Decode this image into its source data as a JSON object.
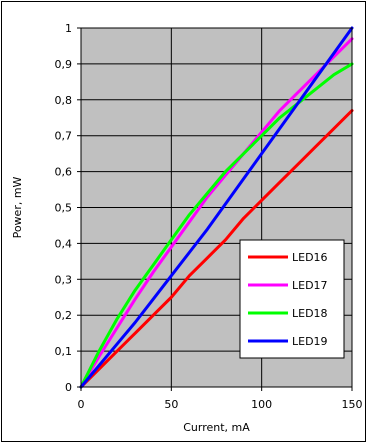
{
  "chart_data": {
    "type": "line",
    "xlabel": "Current, mA",
    "ylabel": "Power, mW",
    "xlim": [
      0,
      150
    ],
    "ylim": [
      0,
      1
    ],
    "x_ticks": [
      0,
      50,
      100,
      150
    ],
    "y_ticks": [
      0,
      0.1,
      0.2,
      0.3,
      0.4,
      0.5,
      0.6,
      0.7,
      0.8,
      0.9,
      1
    ],
    "x_tick_labels": [
      "0",
      "50",
      "100",
      "150"
    ],
    "y_tick_labels": [
      "0",
      "0,1",
      "0,2",
      "0,3",
      "0,4",
      "0,5",
      "0,6",
      "0,7",
      "0,8",
      "0,9",
      "1"
    ],
    "grid": "vertical and horizontal at major ticks",
    "plot_background": "#c0c0c0",
    "legend_position": "lower-right",
    "series": [
      {
        "name": "LED16",
        "color": "#ff0000",
        "x": [
          0,
          10,
          20,
          30,
          40,
          50,
          60,
          70,
          80,
          90,
          100,
          110,
          120,
          130,
          140,
          150
        ],
        "y": [
          0,
          0.05,
          0.1,
          0.15,
          0.2,
          0.25,
          0.31,
          0.36,
          0.41,
          0.47,
          0.52,
          0.57,
          0.62,
          0.67,
          0.72,
          0.77
        ]
      },
      {
        "name": "LED17",
        "color": "#ff00ff",
        "x": [
          0,
          10,
          20,
          30,
          40,
          50,
          60,
          70,
          80,
          90,
          100,
          110,
          120,
          130,
          140,
          150
        ],
        "y": [
          0,
          0.085,
          0.165,
          0.245,
          0.32,
          0.39,
          0.46,
          0.53,
          0.59,
          0.65,
          0.71,
          0.77,
          0.82,
          0.87,
          0.92,
          0.97
        ]
      },
      {
        "name": "LED18",
        "color": "#00ff00",
        "x": [
          0,
          10,
          20,
          30,
          40,
          50,
          60,
          70,
          80,
          90,
          100,
          110,
          120,
          130,
          140,
          150
        ],
        "y": [
          0,
          0.1,
          0.19,
          0.27,
          0.34,
          0.41,
          0.48,
          0.54,
          0.6,
          0.65,
          0.7,
          0.75,
          0.79,
          0.83,
          0.87,
          0.9
        ]
      },
      {
        "name": "LED19",
        "color": "#0000ff",
        "x": [
          0,
          10,
          20,
          30,
          40,
          50,
          60,
          70,
          80,
          90,
          100,
          110,
          120,
          130,
          140,
          150
        ],
        "y": [
          0,
          0.06,
          0.12,
          0.18,
          0.245,
          0.31,
          0.375,
          0.44,
          0.51,
          0.58,
          0.65,
          0.72,
          0.79,
          0.86,
          0.93,
          1.0
        ]
      }
    ]
  }
}
